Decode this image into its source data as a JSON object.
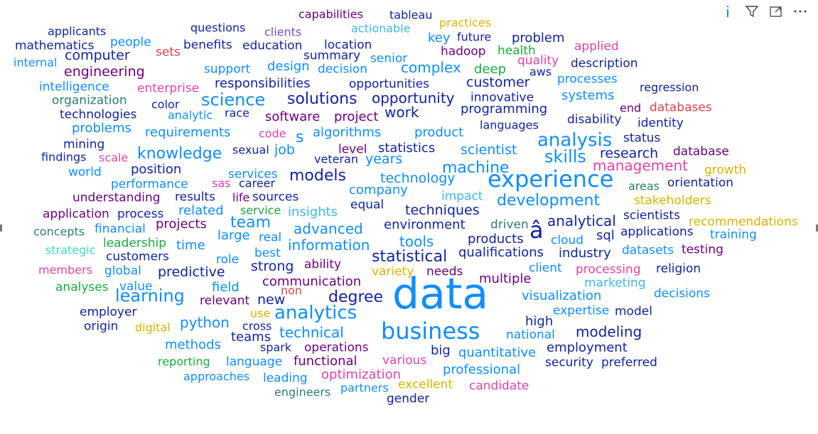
{
  "visual": {
    "header_icons": [
      "info-icon",
      "filter-icon",
      "focus-mode-icon",
      "more-options-icon"
    ]
  },
  "chart_data": {
    "type": "wordcloud",
    "words": [
      {
        "t": "data",
        "s": 72,
        "c": "#118dff"
      },
      {
        "t": "experience",
        "s": 32,
        "c": "#118dff"
      },
      {
        "t": "business",
        "s": 32,
        "c": "#118dff"
      },
      {
        "t": "â",
        "s": 32,
        "c": "#12239e"
      },
      {
        "t": "analytics",
        "s": 26,
        "c": "#118dff"
      },
      {
        "t": "analysis",
        "s": 26,
        "c": "#118dff"
      },
      {
        "t": "science",
        "s": 24,
        "c": "#118dff"
      },
      {
        "t": "learning",
        "s": 24,
        "c": "#118dff"
      },
      {
        "t": "skills",
        "s": 24,
        "c": "#118dff"
      },
      {
        "t": "statistical",
        "s": 22,
        "c": "#12239e"
      },
      {
        "t": "solutions",
        "s": 22,
        "c": "#12239e"
      },
      {
        "t": "team",
        "s": 22,
        "c": "#118dff"
      },
      {
        "t": "development",
        "s": 22,
        "c": "#118dff"
      },
      {
        "t": "models",
        "s": 22,
        "c": "#12239e"
      },
      {
        "t": "knowledge",
        "s": 22,
        "c": "#118dff"
      },
      {
        "t": "machine",
        "s": 22,
        "c": "#118dff"
      },
      {
        "t": "degree",
        "s": 22,
        "c": "#12239e"
      },
      {
        "t": "complex",
        "s": 20,
        "c": "#118dff"
      },
      {
        "t": "work",
        "s": 20,
        "c": "#12239e"
      },
      {
        "t": "management",
        "s": 20,
        "c": "#e044a7"
      },
      {
        "t": "modeling",
        "s": 20,
        "c": "#12239e"
      },
      {
        "t": "technical",
        "s": 20,
        "c": "#118dff"
      },
      {
        "t": "python",
        "s": 20,
        "c": "#118dff"
      },
      {
        "t": "advanced",
        "s": 20,
        "c": "#118dff"
      },
      {
        "t": "information",
        "s": 20,
        "c": "#118dff"
      },
      {
        "t": "tools",
        "s": 20,
        "c": "#118dff"
      },
      {
        "t": "analytical",
        "s": 20,
        "c": "#12239e"
      },
      {
        "t": "opportunity",
        "s": 20,
        "c": "#12239e"
      },
      {
        "t": "customer",
        "s": 19,
        "c": "#12239e"
      },
      {
        "t": "computer",
        "s": 19,
        "c": "#12239e"
      },
      {
        "t": "research",
        "s": 19,
        "c": "#12239e"
      },
      {
        "t": "techniques",
        "s": 19,
        "c": "#12239e"
      },
      {
        "t": "new",
        "s": 19,
        "c": "#12239e"
      },
      {
        "t": "strong",
        "s": 19,
        "c": "#12239e"
      },
      {
        "t": "engineering",
        "s": 19,
        "c": "#6b007b"
      },
      {
        "t": "scientist",
        "s": 19,
        "c": "#118dff"
      },
      {
        "t": "programming",
        "s": 18,
        "c": "#12239e"
      },
      {
        "t": "years",
        "s": 19,
        "c": "#118dff"
      },
      {
        "t": "job",
        "s": 19,
        "c": "#118dff"
      },
      {
        "t": "s",
        "s": 22,
        "c": "#118dff"
      },
      {
        "t": "predictive",
        "s": 19,
        "c": "#12239e"
      },
      {
        "t": "technology",
        "s": 19,
        "c": "#118dff"
      },
      {
        "t": "environment",
        "s": 18,
        "c": "#12239e"
      },
      {
        "t": "qualifications",
        "s": 18,
        "c": "#12239e"
      },
      {
        "t": "responsibilities",
        "s": 18,
        "c": "#12239e"
      },
      {
        "t": "software",
        "s": 18,
        "c": "#6b007b"
      },
      {
        "t": "statistics",
        "s": 18,
        "c": "#12239e"
      },
      {
        "t": "algorithms",
        "s": 18,
        "c": "#118dff"
      },
      {
        "t": "requirements",
        "s": 18,
        "c": "#118dff"
      },
      {
        "t": "design",
        "s": 18,
        "c": "#118dff"
      },
      {
        "t": "product",
        "s": 18,
        "c": "#118dff"
      },
      {
        "t": "products",
        "s": 18,
        "c": "#12239e"
      },
      {
        "t": "systems",
        "s": 18,
        "c": "#118dff"
      },
      {
        "t": "problems",
        "s": 18,
        "c": "#118dff"
      },
      {
        "t": "company",
        "s": 18,
        "c": "#118dff"
      },
      {
        "t": "projects",
        "s": 18,
        "c": "#6b007b"
      },
      {
        "t": "industry",
        "s": 18,
        "c": "#12239e"
      },
      {
        "t": "communication",
        "s": 18,
        "c": "#6b007b"
      },
      {
        "t": "multiple",
        "s": 18,
        "c": "#6b007b"
      },
      {
        "t": "big",
        "s": 18,
        "c": "#12239e"
      },
      {
        "t": "quantitative",
        "s": 18,
        "c": "#118dff"
      },
      {
        "t": "field",
        "s": 18,
        "c": "#118dff"
      },
      {
        "t": "visualization",
        "s": 18,
        "c": "#118dff"
      },
      {
        "t": "employment",
        "s": 18,
        "c": "#12239e"
      },
      {
        "t": "teams",
        "s": 18,
        "c": "#12239e"
      },
      {
        "t": "methods",
        "s": 18,
        "c": "#118dff"
      },
      {
        "t": "related",
        "s": 18,
        "c": "#118dff"
      },
      {
        "t": "time",
        "s": 18,
        "c": "#118dff"
      },
      {
        "t": "large",
        "s": 18,
        "c": "#118dff"
      },
      {
        "t": "sql",
        "s": 18,
        "c": "#12239e"
      },
      {
        "t": "insights",
        "s": 18,
        "c": "#41b6e6"
      },
      {
        "t": "project",
        "s": 18,
        "c": "#6b007b"
      },
      {
        "t": "position",
        "s": 18,
        "c": "#12239e"
      },
      {
        "t": "functional",
        "s": 18,
        "c": "#6b007b"
      },
      {
        "t": "optimization",
        "s": 18,
        "c": "#e044a7"
      },
      {
        "t": "high",
        "s": 18,
        "c": "#12239e"
      },
      {
        "t": "professional",
        "s": 18,
        "c": "#118dff"
      },
      {
        "t": "mathematics",
        "s": 17,
        "c": "#12239e"
      },
      {
        "t": "people",
        "s": 17,
        "c": "#118dff"
      },
      {
        "t": "intelligence",
        "s": 17,
        "c": "#118dff"
      },
      {
        "t": "technologies",
        "s": 17,
        "c": "#12239e"
      },
      {
        "t": "organization",
        "s": 17,
        "c": "#2d7d6f"
      },
      {
        "t": "support",
        "s": 17,
        "c": "#118dff"
      },
      {
        "t": "decision",
        "s": 17,
        "c": "#118dff"
      },
      {
        "t": "education",
        "s": 17,
        "c": "#12239e"
      },
      {
        "t": "location",
        "s": 17,
        "c": "#12239e"
      },
      {
        "t": "benefits",
        "s": 17,
        "c": "#12239e"
      },
      {
        "t": "questions",
        "s": 16,
        "c": "#12239e"
      },
      {
        "t": "clients",
        "s": 16,
        "c": "#744ec2"
      },
      {
        "t": "actionable",
        "s": 16,
        "c": "#41b6e6"
      },
      {
        "t": "key",
        "s": 18,
        "c": "#118dff"
      },
      {
        "t": "future",
        "s": 16,
        "c": "#12239e"
      },
      {
        "t": "problem",
        "s": 18,
        "c": "#12239e"
      },
      {
        "t": "practices",
        "s": 16,
        "c": "#d9b300"
      },
      {
        "t": "hadoop",
        "s": 17,
        "c": "#6b007b"
      },
      {
        "t": "health",
        "s": 17,
        "c": "#1aab40"
      },
      {
        "t": "quality",
        "s": 17,
        "c": "#e044a7"
      },
      {
        "t": "applied",
        "s": 17,
        "c": "#e044a7"
      },
      {
        "t": "description",
        "s": 17,
        "c": "#12239e"
      },
      {
        "t": "aws",
        "s": 16,
        "c": "#12239e"
      },
      {
        "t": "deep",
        "s": 18,
        "c": "#1aab40"
      },
      {
        "t": "processes",
        "s": 17,
        "c": "#118dff"
      },
      {
        "t": "regression",
        "s": 16,
        "c": "#12239e"
      },
      {
        "t": "innovative",
        "s": 17,
        "c": "#12239e"
      },
      {
        "t": "opportunities",
        "s": 17,
        "c": "#12239e"
      },
      {
        "t": "senior",
        "s": 17,
        "c": "#118dff"
      },
      {
        "t": "summary",
        "s": 17,
        "c": "#12239e"
      },
      {
        "t": "sets",
        "s": 17,
        "c": "#d64550"
      },
      {
        "t": "applicants",
        "s": 16,
        "c": "#12239e"
      },
      {
        "t": "internal",
        "s": 16,
        "c": "#118dff"
      },
      {
        "t": "enterprise",
        "s": 17,
        "c": "#e044a7"
      },
      {
        "t": "color",
        "s": 16,
        "c": "#12239e"
      },
      {
        "t": "analytic",
        "s": 16,
        "c": "#118dff"
      },
      {
        "t": "race",
        "s": 16,
        "c": "#12239e"
      },
      {
        "t": "end",
        "s": 16,
        "c": "#6b007b"
      },
      {
        "t": "databases",
        "s": 17,
        "c": "#d64550"
      },
      {
        "t": "disability",
        "s": 17,
        "c": "#12239e"
      },
      {
        "t": "identity",
        "s": 17,
        "c": "#12239e"
      },
      {
        "t": "languages",
        "s": 16,
        "c": "#12239e"
      },
      {
        "t": "status",
        "s": 17,
        "c": "#12239e"
      },
      {
        "t": "code",
        "s": 16,
        "c": "#e044a7"
      },
      {
        "t": "mining",
        "s": 17,
        "c": "#12239e"
      },
      {
        "t": "findings",
        "s": 16,
        "c": "#12239e"
      },
      {
        "t": "scale",
        "s": 16,
        "c": "#e044a7"
      },
      {
        "t": "sexual",
        "s": 16,
        "c": "#12239e"
      },
      {
        "t": "veteran",
        "s": 16,
        "c": "#12239e"
      },
      {
        "t": "level",
        "s": 17,
        "c": "#6b007b"
      },
      {
        "t": "database",
        "s": 17,
        "c": "#6b007b"
      },
      {
        "t": "growth",
        "s": 17,
        "c": "#d9b300"
      },
      {
        "t": "world",
        "s": 17,
        "c": "#118dff"
      },
      {
        "t": "services",
        "s": 17,
        "c": "#118dff"
      },
      {
        "t": "areas",
        "s": 16,
        "c": "#2d7d6f"
      },
      {
        "t": "orientation",
        "s": 17,
        "c": "#12239e"
      },
      {
        "t": "performance",
        "s": 17,
        "c": "#118dff"
      },
      {
        "t": "sas",
        "s": 16,
        "c": "#e044a7"
      },
      {
        "t": "career",
        "s": 16,
        "c": "#12239e"
      },
      {
        "t": "impact",
        "s": 17,
        "c": "#41b6e6"
      },
      {
        "t": "stakeholders",
        "s": 17,
        "c": "#d9b300"
      },
      {
        "t": "understanding",
        "s": 17,
        "c": "#6b007b"
      },
      {
        "t": "results",
        "s": 17,
        "c": "#12239e"
      },
      {
        "t": "life",
        "s": 16,
        "c": "#6b007b"
      },
      {
        "t": "sources",
        "s": 17,
        "c": "#12239e"
      },
      {
        "t": "equal",
        "s": 17,
        "c": "#12239e"
      },
      {
        "t": "application",
        "s": 17,
        "c": "#6b007b"
      },
      {
        "t": "process",
        "s": 17,
        "c": "#12239e"
      },
      {
        "t": "service",
        "s": 16,
        "c": "#1aab40"
      },
      {
        "t": "scientists",
        "s": 17,
        "c": "#12239e"
      },
      {
        "t": "recommendations",
        "s": 17,
        "c": "#d9b300"
      },
      {
        "t": "driven",
        "s": 17,
        "c": "#2d7d6f"
      },
      {
        "t": "concepts",
        "s": 16,
        "c": "#2d7d6f"
      },
      {
        "t": "financial",
        "s": 17,
        "c": "#118dff"
      },
      {
        "t": "real",
        "s": 17,
        "c": "#118dff"
      },
      {
        "t": "cloud",
        "s": 17,
        "c": "#118dff"
      },
      {
        "t": "applications",
        "s": 17,
        "c": "#12239e"
      },
      {
        "t": "training",
        "s": 17,
        "c": "#118dff"
      },
      {
        "t": "leadership",
        "s": 17,
        "c": "#1aab40"
      },
      {
        "t": "strategic",
        "s": 16,
        "c": "#41d9bf"
      },
      {
        "t": "customers",
        "s": 17,
        "c": "#12239e"
      },
      {
        "t": "role",
        "s": 17,
        "c": "#118dff"
      },
      {
        "t": "best",
        "s": 17,
        "c": "#118dff"
      },
      {
        "t": "ability",
        "s": 17,
        "c": "#6b007b"
      },
      {
        "t": "variety",
        "s": 17,
        "c": "#d9b300"
      },
      {
        "t": "needs",
        "s": 17,
        "c": "#6b007b"
      },
      {
        "t": "datasets",
        "s": 17,
        "c": "#118dff"
      },
      {
        "t": "testing",
        "s": 17,
        "c": "#6b007b"
      },
      {
        "t": "members",
        "s": 16,
        "c": "#e044a7"
      },
      {
        "t": "global",
        "s": 17,
        "c": "#118dff"
      },
      {
        "t": "client",
        "s": 17,
        "c": "#118dff"
      },
      {
        "t": "processing",
        "s": 17,
        "c": "#e044a7"
      },
      {
        "t": "religion",
        "s": 17,
        "c": "#12239e"
      },
      {
        "t": "analyses",
        "s": 17,
        "c": "#1aab40"
      },
      {
        "t": "value",
        "s": 17,
        "c": "#118dff"
      },
      {
        "t": "marketing",
        "s": 17,
        "c": "#41b6e6"
      },
      {
        "t": "non",
        "s": 16,
        "c": "#d64550"
      },
      {
        "t": "relevant",
        "s": 17,
        "c": "#6b007b"
      },
      {
        "t": "decisions",
        "s": 17,
        "c": "#118dff"
      },
      {
        "t": "employer",
        "s": 17,
        "c": "#12239e"
      },
      {
        "t": "use",
        "s": 16,
        "c": "#d9b300"
      },
      {
        "t": "expertise",
        "s": 17,
        "c": "#118dff"
      },
      {
        "t": "model",
        "s": 17,
        "c": "#12239e"
      },
      {
        "t": "origin",
        "s": 17,
        "c": "#12239e"
      },
      {
        "t": "digital",
        "s": 16,
        "c": "#d9b300"
      },
      {
        "t": "cross",
        "s": 16,
        "c": "#12239e"
      },
      {
        "t": "national",
        "s": 17,
        "c": "#118dff"
      },
      {
        "t": "spark",
        "s": 16,
        "c": "#12239e"
      },
      {
        "t": "operations",
        "s": 17,
        "c": "#6b007b"
      },
      {
        "t": "reporting",
        "s": 16,
        "c": "#1aab40"
      },
      {
        "t": "language",
        "s": 17,
        "c": "#118dff"
      },
      {
        "t": "various",
        "s": 17,
        "c": "#e044a7"
      },
      {
        "t": "security",
        "s": 17,
        "c": "#12239e"
      },
      {
        "t": "preferred",
        "s": 17,
        "c": "#12239e"
      },
      {
        "t": "approaches",
        "s": 16,
        "c": "#118dff"
      },
      {
        "t": "leading",
        "s": 17,
        "c": "#118dff"
      },
      {
        "t": "engineers",
        "s": 16,
        "c": "#2d7d6f"
      },
      {
        "t": "partners",
        "s": 16,
        "c": "#118dff"
      },
      {
        "t": "excellent",
        "s": 17,
        "c": "#d9b300"
      },
      {
        "t": "candidate",
        "s": 17,
        "c": "#e044a7"
      },
      {
        "t": "gender",
        "s": 17,
        "c": "#12239e"
      },
      {
        "t": "capabilities",
        "s": 16,
        "c": "#6b007b"
      },
      {
        "t": "tableau",
        "s": 16,
        "c": "#12239e"
      }
    ]
  }
}
